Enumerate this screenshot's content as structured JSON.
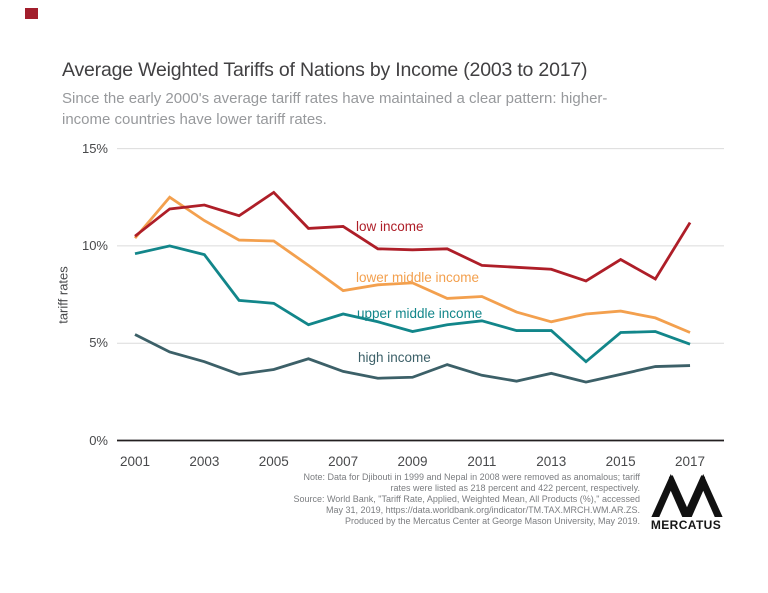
{
  "page": {
    "corner_mark_color": "#a21e2c",
    "background": "#ffffff"
  },
  "header": {
    "title": "Average Weighted Tariffs of Nations by Income (2003 to 2017)",
    "subtitle_line1": "Since the early 2000's average tariff rates have maintained a clear pattern: higher-",
    "subtitle_line2": "income countries have lower tariff rates."
  },
  "chart_data": {
    "type": "line",
    "title": "Average Weighted Tariffs of Nations by Income (2003 to 2017)",
    "y_axis_label": "tariff rates",
    "ylim": [
      0,
      15
    ],
    "grid": "horizontal gridlines at 5, 10, 15; solid black baseline at 0; legend as inline colored labels",
    "x": [
      2001,
      2002,
      2003,
      2004,
      2005,
      2006,
      2007,
      2008,
      2009,
      2010,
      2011,
      2012,
      2013,
      2014,
      2015,
      2016,
      2017
    ],
    "x_ticks": [
      {
        "year": 2001,
        "label": "2001"
      },
      {
        "year": 2003,
        "label": "2003"
      },
      {
        "year": 2005,
        "label": "2005"
      },
      {
        "year": 2007,
        "label": "2007"
      },
      {
        "year": 2009,
        "label": "2009"
      },
      {
        "year": 2011,
        "label": "2011"
      },
      {
        "year": 2013,
        "label": "2013"
      },
      {
        "year": 2015,
        "label": "2015"
      },
      {
        "year": 2017,
        "label": "2017"
      }
    ],
    "y_ticks": [
      {
        "value": 15,
        "label": "15%"
      },
      {
        "value": 10,
        "label": "10%"
      },
      {
        "value": 5,
        "label": "5%"
      },
      {
        "value": 0,
        "label": "0%"
      }
    ],
    "series": [
      {
        "name": "high income",
        "color": "#3c6068",
        "values": [
          5.45,
          4.55,
          4.05,
          3.4,
          3.65,
          4.2,
          3.55,
          3.2,
          3.25,
          3.9,
          3.35,
          3.05,
          3.45,
          3.0,
          3.4,
          3.8,
          3.85
        ]
      },
      {
        "name": "upper middle income",
        "color": "#12868a",
        "values": [
          9.6,
          10.0,
          9.55,
          7.2,
          7.05,
          5.95,
          6.5,
          6.1,
          5.6,
          5.95,
          6.15,
          5.65,
          5.65,
          4.05,
          5.55,
          5.6,
          4.95
        ]
      },
      {
        "name": "lower middle income",
        "color": "#f3a04e",
        "values": [
          10.4,
          12.5,
          11.3,
          10.3,
          10.25,
          9.0,
          7.7,
          8.0,
          8.1,
          7.3,
          7.4,
          6.6,
          6.1,
          6.5,
          6.65,
          6.3,
          5.55
        ]
      },
      {
        "name": "low income",
        "color": "#ae1e28",
        "values": [
          10.5,
          11.9,
          12.1,
          11.55,
          12.75,
          10.9,
          11.0,
          9.85,
          9.8,
          9.85,
          9.0,
          8.9,
          8.8,
          8.2,
          9.3,
          8.3,
          11.2
        ]
      }
    ]
  },
  "note": {
    "lines": [
      "Note: Data for Djibouti in 1999 and Nepal in 2008 were removed as anomalous; tariff",
      "rates were listed as 218 percent and 422 percent, respectively.",
      "Source: World Bank, \"Tariff Rate, Applied, Weighted Mean, All Products (%),\" accessed",
      "May 31, 2019, https://data.worldbank.org/indicator/TM.TAX.MRCH.WM.AR.ZS.",
      "Produced by the Mercatus Center at George Mason University, May 2019."
    ]
  },
  "branding": {
    "logo_text": "MERCATUS"
  }
}
